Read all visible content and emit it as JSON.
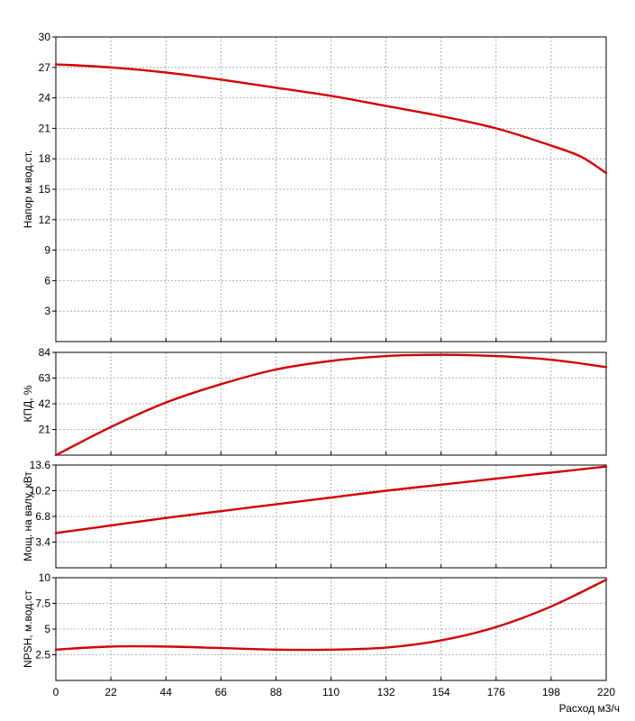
{
  "chart_data": {
    "type": "line",
    "accent_color": "#d40000",
    "xlabel": "Расход м3/ч",
    "x_ticks": [
      0,
      22,
      44,
      66,
      88,
      110,
      132,
      154,
      176,
      198,
      220
    ],
    "xlim": [
      0,
      220
    ],
    "grid": true,
    "panels": [
      {
        "id": "head",
        "ylabel": "Напор м.вод.ст.",
        "ylim": [
          0,
          30
        ],
        "y_ticks": [
          3,
          6,
          9,
          12,
          15,
          18,
          21,
          24,
          27,
          30
        ],
        "x": [
          0,
          22,
          44,
          66,
          88,
          110,
          132,
          154,
          176,
          198,
          210,
          220
        ],
        "y": [
          27.3,
          27.0,
          26.5,
          25.8,
          25.0,
          24.2,
          23.2,
          22.2,
          21.0,
          19.3,
          18.2,
          16.6
        ]
      },
      {
        "id": "efficiency",
        "ylabel": "КПД, %",
        "ylim": [
          0,
          84
        ],
        "y_ticks": [
          21,
          42,
          63,
          84
        ],
        "x": [
          0,
          22,
          44,
          66,
          88,
          110,
          132,
          154,
          176,
          198,
          220
        ],
        "y": [
          0,
          23,
          43,
          58,
          70,
          77,
          81,
          82,
          81,
          78,
          72
        ]
      },
      {
        "id": "power",
        "ylabel": "Мощ. на валу, кВт",
        "ylim": [
          0,
          13.6
        ],
        "y_ticks": [
          3.4,
          6.8,
          10.2,
          13.6
        ],
        "x": [
          0,
          22,
          44,
          66,
          88,
          110,
          132,
          154,
          176,
          198,
          220
        ],
        "y": [
          4.6,
          5.6,
          6.6,
          7.5,
          8.4,
          9.3,
          10.2,
          11.0,
          11.8,
          12.6,
          13.4
        ]
      },
      {
        "id": "npsh",
        "ylabel": "NPSH, м.вод.ст",
        "ylim": [
          0,
          10
        ],
        "y_ticks": [
          2.5,
          5,
          7.5,
          10
        ],
        "x": [
          0,
          22,
          44,
          66,
          88,
          110,
          132,
          154,
          176,
          198,
          220
        ],
        "y": [
          3.0,
          3.3,
          3.3,
          3.15,
          3.0,
          3.0,
          3.2,
          3.9,
          5.2,
          7.2,
          9.8
        ]
      }
    ]
  }
}
